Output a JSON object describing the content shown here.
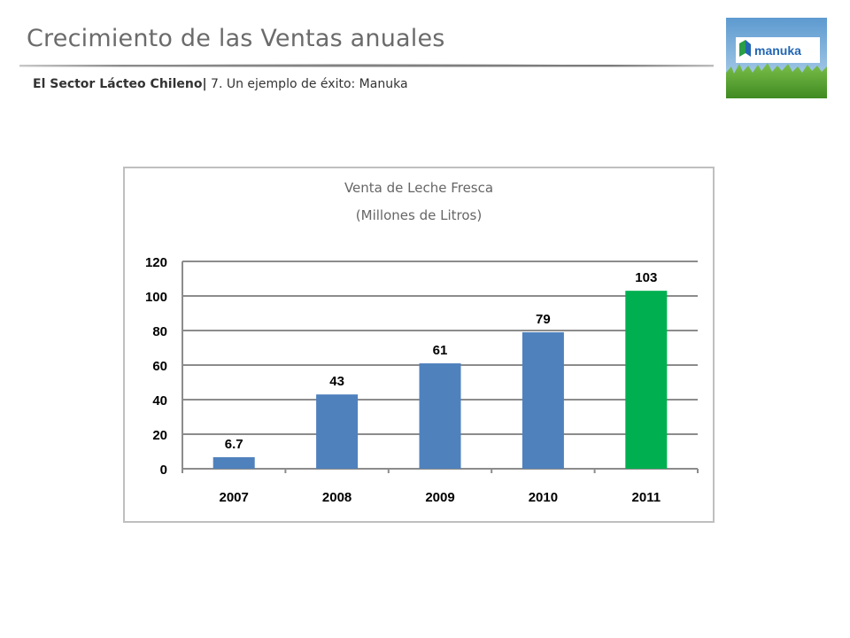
{
  "header": {
    "title": "Crecimiento de las Ventas anuales",
    "subtitle_bold": "El Sector Lácteo Chileno|",
    "subtitle_rest": " 7. Un ejemplo de éxito: Manuka"
  },
  "logo": {
    "text": "manuka",
    "colors": {
      "sky": "#6fa8d8",
      "grass": "#4f9a2c",
      "text": "#2366b3",
      "accent": "#2a9d47"
    }
  },
  "chart_data": {
    "type": "bar",
    "title": "Venta de Leche Fresca",
    "subtitle": "(Millones de Litros)",
    "categories": [
      "2007",
      "2008",
      "2009",
      "2010",
      "2011"
    ],
    "values": [
      6.7,
      43,
      61,
      79,
      103
    ],
    "data_labels": [
      "6.7",
      "43",
      "61",
      "79",
      "103"
    ],
    "bar_colors": [
      "#4f81bd",
      "#4f81bd",
      "#4f81bd",
      "#4f81bd",
      "#00b050"
    ],
    "ylim": [
      0,
      120
    ],
    "yticks": [
      0,
      20,
      40,
      60,
      80,
      100,
      120
    ],
    "grid": true,
    "legend": "none"
  }
}
